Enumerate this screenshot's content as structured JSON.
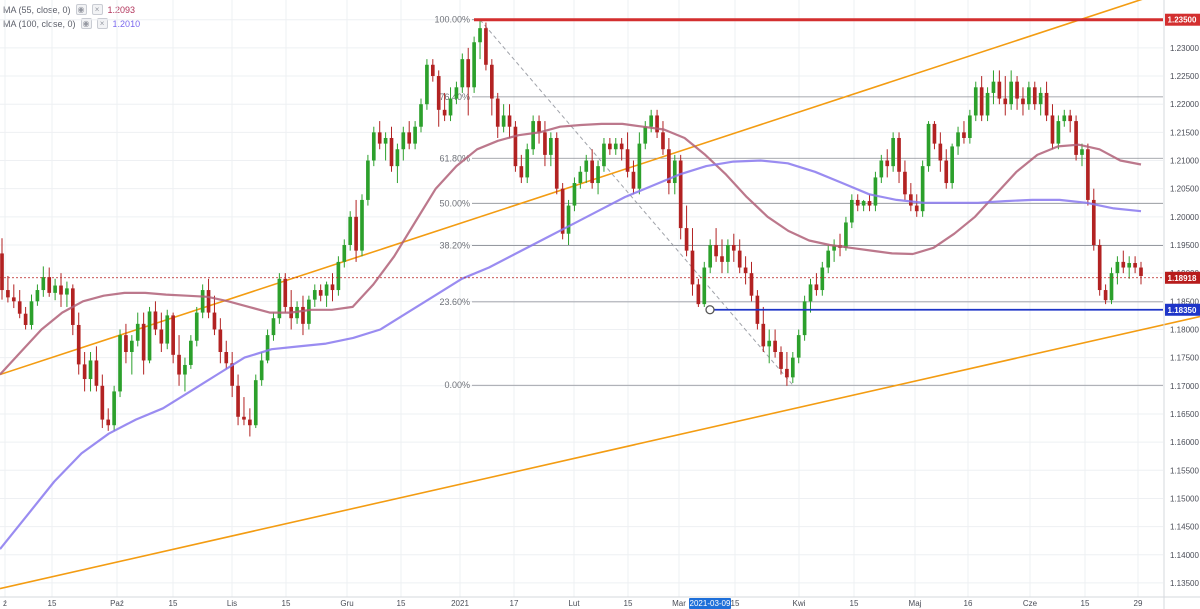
{
  "indicators": [
    {
      "label": "MA (55, close, 0)",
      "value": "1.2093",
      "color": "#b2345b"
    },
    {
      "label": "MA (100, close, 0)",
      "value": "1.2010",
      "color": "#7b68ee"
    }
  ],
  "chart_data": {
    "type": "candlestick",
    "x_tick_labels": [
      "ź",
      "15",
      "Paź",
      "15",
      "Lis",
      "15",
      "Gru",
      "15",
      "2021",
      "17",
      "Lut",
      "15",
      "Mar",
      "15",
      "Kwi",
      "15",
      "Maj",
      "16",
      "Cze",
      "15",
      "29"
    ],
    "x_highlight_label": "2021-03-09",
    "y_tick_labels": [
      "1.23500",
      "1.23000",
      "1.22500",
      "1.22000",
      "1.21500",
      "1.21000",
      "1.20500",
      "1.20000",
      "1.19500",
      "1.19000",
      "1.18500",
      "1.18000",
      "1.17500",
      "1.17000",
      "1.16500",
      "1.16000",
      "1.15500",
      "1.15000",
      "1.14500",
      "1.14000",
      "1.13500"
    ],
    "ylim": [
      1.1325,
      1.2385
    ],
    "price_labels": [
      {
        "text": "1.23500",
        "value": 1.235,
        "color": "#d32f2f"
      },
      {
        "text": "1.18918",
        "value": 1.18918,
        "color": "#b71c1c"
      },
      {
        "text": "1.18350",
        "value": 1.1835,
        "color": "#1e35c8"
      }
    ],
    "fibonacci": [
      {
        "label": "100.00%",
        "value": 1.235
      },
      {
        "label": "76.40%",
        "value": 1.2213
      },
      {
        "label": "61.80%",
        "value": 1.2104
      },
      {
        "label": "50.00%",
        "value": 1.2024
      },
      {
        "label": "38.20%",
        "value": 1.1949
      },
      {
        "label": "23.60%",
        "value": 1.1849
      },
      {
        "label": "0.00%",
        "value": 1.1701
      }
    ],
    "candles": [
      [
        1.1935,
        1.1962,
        1.1853,
        1.187
      ],
      [
        1.187,
        1.1895,
        1.1848,
        1.1857
      ],
      [
        1.1857,
        1.188,
        1.1838,
        1.185
      ],
      [
        1.185,
        1.187,
        1.182,
        1.1828
      ],
      [
        1.1828,
        1.184,
        1.18,
        1.1808
      ],
      [
        1.1808,
        1.1862,
        1.18,
        1.185
      ],
      [
        1.185,
        1.188,
        1.1842,
        1.187
      ],
      [
        1.187,
        1.1912,
        1.1858,
        1.1893
      ],
      [
        1.1893,
        1.191,
        1.1858,
        1.1865
      ],
      [
        1.1865,
        1.189,
        1.1852,
        1.1878
      ],
      [
        1.1878,
        1.19,
        1.184,
        1.1862
      ],
      [
        1.1862,
        1.1885,
        1.184,
        1.1873
      ],
      [
        1.1873,
        1.188,
        1.179,
        1.1808
      ],
      [
        1.1808,
        1.183,
        1.172,
        1.1738
      ],
      [
        1.1738,
        1.176,
        1.169,
        1.1712
      ],
      [
        1.1712,
        1.176,
        1.169,
        1.1745
      ],
      [
        1.1745,
        1.177,
        1.169,
        1.17
      ],
      [
        1.17,
        1.172,
        1.1625,
        1.164
      ],
      [
        1.164,
        1.166,
        1.162,
        1.163
      ],
      [
        1.163,
        1.17,
        1.162,
        1.169
      ],
      [
        1.169,
        1.18,
        1.168,
        1.179
      ],
      [
        1.179,
        1.181,
        1.174,
        1.176
      ],
      [
        1.176,
        1.179,
        1.172,
        1.178
      ],
      [
        1.178,
        1.183,
        1.177,
        1.181
      ],
      [
        1.181,
        1.183,
        1.172,
        1.1745
      ],
      [
        1.1745,
        1.184,
        1.174,
        1.1832
      ],
      [
        1.1832,
        1.185,
        1.179,
        1.18
      ],
      [
        1.18,
        1.183,
        1.176,
        1.1775
      ],
      [
        1.1775,
        1.1835,
        1.1765,
        1.1825
      ],
      [
        1.1825,
        1.183,
        1.174,
        1.1755
      ],
      [
        1.1755,
        1.179,
        1.17,
        1.172
      ],
      [
        1.172,
        1.175,
        1.169,
        1.1737
      ],
      [
        1.1737,
        1.179,
        1.173,
        1.178
      ],
      [
        1.178,
        1.184,
        1.177,
        1.183
      ],
      [
        1.183,
        1.188,
        1.182,
        1.187
      ],
      [
        1.187,
        1.189,
        1.182,
        1.183
      ],
      [
        1.183,
        1.186,
        1.179,
        1.18
      ],
      [
        1.18,
        1.182,
        1.174,
        1.176
      ],
      [
        1.176,
        1.178,
        1.173,
        1.174
      ],
      [
        1.174,
        1.176,
        1.168,
        1.17
      ],
      [
        1.17,
        1.172,
        1.163,
        1.1645
      ],
      [
        1.1645,
        1.168,
        1.163,
        1.164
      ],
      [
        1.164,
        1.166,
        1.161,
        1.163
      ],
      [
        1.163,
        1.172,
        1.1625,
        1.171
      ],
      [
        1.171,
        1.176,
        1.17,
        1.1745
      ],
      [
        1.1745,
        1.18,
        1.174,
        1.179
      ],
      [
        1.179,
        1.183,
        1.178,
        1.182
      ],
      [
        1.182,
        1.19,
        1.181,
        1.189
      ],
      [
        1.189,
        1.19,
        1.183,
        1.184
      ],
      [
        1.184,
        1.187,
        1.18,
        1.182
      ],
      [
        1.182,
        1.185,
        1.181,
        1.184
      ],
      [
        1.184,
        1.186,
        1.179,
        1.181
      ],
      [
        1.181,
        1.186,
        1.18,
        1.1853
      ],
      [
        1.1853,
        1.188,
        1.184,
        1.187
      ],
      [
        1.187,
        1.188,
        1.185,
        1.186
      ],
      [
        1.186,
        1.1885,
        1.184,
        1.188
      ],
      [
        1.188,
        1.19,
        1.185,
        1.187
      ],
      [
        1.187,
        1.193,
        1.186,
        1.192
      ],
      [
        1.192,
        1.196,
        1.191,
        1.195
      ],
      [
        1.195,
        1.201,
        1.194,
        1.2
      ],
      [
        1.2,
        1.203,
        1.192,
        1.194
      ],
      [
        1.194,
        1.204,
        1.193,
        1.203
      ],
      [
        1.203,
        1.211,
        1.202,
        1.21
      ],
      [
        1.21,
        1.216,
        1.209,
        1.215
      ],
      [
        1.215,
        1.217,
        1.212,
        1.213
      ],
      [
        1.213,
        1.215,
        1.21,
        1.214
      ],
      [
        1.214,
        1.216,
        1.208,
        1.209
      ],
      [
        1.209,
        1.213,
        1.206,
        1.212
      ],
      [
        1.212,
        1.216,
        1.21,
        1.215
      ],
      [
        1.215,
        1.217,
        1.212,
        1.213
      ],
      [
        1.213,
        1.217,
        1.212,
        1.216
      ],
      [
        1.216,
        1.221,
        1.215,
        1.22
      ],
      [
        1.22,
        1.228,
        1.219,
        1.227
      ],
      [
        1.227,
        1.228,
        1.224,
        1.225
      ],
      [
        1.225,
        1.226,
        1.216,
        1.219
      ],
      [
        1.219,
        1.222,
        1.217,
        1.218
      ],
      [
        1.218,
        1.223,
        1.217,
        1.221
      ],
      [
        1.221,
        1.224,
        1.22,
        1.223
      ],
      [
        1.223,
        1.229,
        1.222,
        1.228
      ],
      [
        1.228,
        1.23,
        1.218,
        1.223
      ],
      [
        1.223,
        1.232,
        1.222,
        1.231
      ],
      [
        1.231,
        1.2349,
        1.228,
        1.2335
      ],
      [
        1.2335,
        1.2345,
        1.226,
        1.227
      ],
      [
        1.227,
        1.228,
        1.218,
        1.221
      ],
      [
        1.221,
        1.222,
        1.214,
        1.216
      ],
      [
        1.216,
        1.22,
        1.215,
        1.218
      ],
      [
        1.218,
        1.22,
        1.214,
        1.216
      ],
      [
        1.216,
        1.217,
        1.208,
        1.209
      ],
      [
        1.209,
        1.211,
        1.206,
        1.207
      ],
      [
        1.207,
        1.213,
        1.206,
        1.212
      ],
      [
        1.212,
        1.218,
        1.211,
        1.217
      ],
      [
        1.217,
        1.218,
        1.213,
        1.215
      ],
      [
        1.215,
        1.217,
        1.209,
        1.211
      ],
      [
        1.211,
        1.215,
        1.209,
        1.214
      ],
      [
        1.214,
        1.215,
        1.204,
        1.205
      ],
      [
        1.205,
        1.206,
        1.196,
        1.197
      ],
      [
        1.197,
        1.203,
        1.195,
        1.202
      ],
      [
        1.202,
        1.207,
        1.201,
        1.206
      ],
      [
        1.206,
        1.209,
        1.205,
        1.208
      ],
      [
        1.208,
        1.211,
        1.206,
        1.21
      ],
      [
        1.21,
        1.212,
        1.205,
        1.206
      ],
      [
        1.206,
        1.21,
        1.204,
        1.209
      ],
      [
        1.209,
        1.214,
        1.208,
        1.213
      ],
      [
        1.213,
        1.214,
        1.211,
        1.212
      ],
      [
        1.212,
        1.214,
        1.211,
        1.213
      ],
      [
        1.213,
        1.214,
        1.21,
        1.212
      ],
      [
        1.212,
        1.215,
        1.207,
        1.208
      ],
      [
        1.208,
        1.21,
        1.204,
        1.205
      ],
      [
        1.205,
        1.215,
        1.204,
        1.213
      ],
      [
        1.213,
        1.217,
        1.212,
        1.216
      ],
      [
        1.216,
        1.219,
        1.215,
        1.218
      ],
      [
        1.218,
        1.219,
        1.214,
        1.215
      ],
      [
        1.215,
        1.217,
        1.211,
        1.212
      ],
      [
        1.212,
        1.214,
        1.204,
        1.206
      ],
      [
        1.206,
        1.211,
        1.204,
        1.21
      ],
      [
        1.21,
        1.211,
        1.196,
        1.198
      ],
      [
        1.198,
        1.202,
        1.193,
        1.194
      ],
      [
        1.194,
        1.198,
        1.186,
        1.188
      ],
      [
        1.188,
        1.189,
        1.184,
        1.1845
      ],
      [
        1.1845,
        1.192,
        1.184,
        1.191
      ],
      [
        1.191,
        1.196,
        1.19,
        1.195
      ],
      [
        1.195,
        1.198,
        1.192,
        1.193
      ],
      [
        1.193,
        1.196,
        1.19,
        1.192
      ],
      [
        1.192,
        1.196,
        1.19,
        1.195
      ],
      [
        1.195,
        1.197,
        1.192,
        1.194
      ],
      [
        1.194,
        1.196,
        1.19,
        1.191
      ],
      [
        1.191,
        1.193,
        1.188,
        1.19
      ],
      [
        1.19,
        1.192,
        1.185,
        1.186
      ],
      [
        1.186,
        1.187,
        1.18,
        1.181
      ],
      [
        1.181,
        1.184,
        1.176,
        1.177
      ],
      [
        1.177,
        1.18,
        1.174,
        1.178
      ],
      [
        1.178,
        1.18,
        1.175,
        1.176
      ],
      [
        1.176,
        1.177,
        1.172,
        1.173
      ],
      [
        1.173,
        1.176,
        1.17,
        1.1715
      ],
      [
        1.1715,
        1.176,
        1.1705,
        1.175
      ],
      [
        1.175,
        1.18,
        1.174,
        1.179
      ],
      [
        1.179,
        1.186,
        1.178,
        1.185
      ],
      [
        1.185,
        1.189,
        1.183,
        1.188
      ],
      [
        1.188,
        1.19,
        1.186,
        1.187
      ],
      [
        1.187,
        1.192,
        1.186,
        1.191
      ],
      [
        1.191,
        1.195,
        1.19,
        1.194
      ],
      [
        1.194,
        1.196,
        1.192,
        1.195
      ],
      [
        1.195,
        1.197,
        1.193,
        1.1945
      ],
      [
        1.1945,
        1.2,
        1.194,
        1.199
      ],
      [
        1.199,
        1.204,
        1.198,
        1.203
      ],
      [
        1.203,
        1.204,
        1.201,
        1.202
      ],
      [
        1.202,
        1.203,
        1.201,
        1.2028
      ],
      [
        1.2028,
        1.204,
        1.201,
        1.202
      ],
      [
        1.202,
        1.208,
        1.201,
        1.207
      ],
      [
        1.207,
        1.211,
        1.206,
        1.21
      ],
      [
        1.21,
        1.212,
        1.207,
        1.209
      ],
      [
        1.209,
        1.215,
        1.208,
        1.214
      ],
      [
        1.214,
        1.215,
        1.206,
        1.208
      ],
      [
        1.208,
        1.21,
        1.203,
        1.204
      ],
      [
        1.204,
        1.206,
        1.201,
        1.202
      ],
      [
        1.202,
        1.204,
        1.2,
        1.201
      ],
      [
        1.201,
        1.21,
        1.2,
        1.209
      ],
      [
        1.209,
        1.217,
        1.208,
        1.2165
      ],
      [
        1.2165,
        1.217,
        1.212,
        1.213
      ],
      [
        1.213,
        1.215,
        1.208,
        1.21
      ],
      [
        1.21,
        1.212,
        1.205,
        1.206
      ],
      [
        1.206,
        1.213,
        1.205,
        1.2125
      ],
      [
        1.2125,
        1.216,
        1.211,
        1.215
      ],
      [
        1.215,
        1.217,
        1.213,
        1.214
      ],
      [
        1.214,
        1.219,
        1.213,
        1.218
      ],
      [
        1.218,
        1.224,
        1.217,
        1.223
      ],
      [
        1.223,
        1.225,
        1.217,
        1.218
      ],
      [
        1.218,
        1.223,
        1.217,
        1.222
      ],
      [
        1.222,
        1.226,
        1.22,
        1.224
      ],
      [
        1.224,
        1.226,
        1.22,
        1.221
      ],
      [
        1.221,
        1.225,
        1.218,
        1.22
      ],
      [
        1.22,
        1.226,
        1.219,
        1.224
      ],
      [
        1.224,
        1.225,
        1.219,
        1.221
      ],
      [
        1.221,
        1.223,
        1.218,
        1.22
      ],
      [
        1.22,
        1.224,
        1.219,
        1.223
      ],
      [
        1.223,
        1.224,
        1.219,
        1.22
      ],
      [
        1.22,
        1.223,
        1.218,
        1.222
      ],
      [
        1.222,
        1.224,
        1.217,
        1.218
      ],
      [
        1.218,
        1.22,
        1.212,
        1.213
      ],
      [
        1.213,
        1.218,
        1.212,
        1.217
      ],
      [
        1.217,
        1.219,
        1.216,
        1.218
      ],
      [
        1.218,
        1.219,
        1.215,
        1.217
      ],
      [
        1.217,
        1.218,
        1.21,
        1.211
      ],
      [
        1.211,
        1.213,
        1.209,
        1.212
      ],
      [
        1.212,
        1.213,
        1.202,
        1.203
      ],
      [
        1.203,
        1.205,
        1.194,
        1.195
      ],
      [
        1.195,
        1.196,
        1.186,
        1.187
      ],
      [
        1.187,
        1.188,
        1.1845,
        1.1852
      ],
      [
        1.1852,
        1.191,
        1.1845,
        1.19
      ],
      [
        1.19,
        1.193,
        1.188,
        1.192
      ],
      [
        1.192,
        1.194,
        1.19,
        1.191
      ],
      [
        1.191,
        1.193,
        1.189,
        1.1918
      ],
      [
        1.1918,
        1.193,
        1.19,
        1.191
      ],
      [
        1.191,
        1.192,
        1.188,
        1.1895
      ]
    ],
    "ma55": [
      1.172,
      1.176,
      1.18,
      1.183,
      1.185,
      1.186,
      1.1865,
      1.1865,
      1.1862,
      1.186,
      1.1858,
      1.185,
      1.184,
      1.183,
      1.183,
      1.1835,
      1.1835,
      1.184,
      1.188,
      1.193,
      1.199,
      1.205,
      1.209,
      1.212,
      1.2135,
      1.2145,
      1.215,
      1.216,
      1.2163,
      1.2165,
      1.2165,
      1.216,
      1.2155,
      1.214,
      1.211,
      1.2075,
      1.2035,
      1.2,
      1.1975,
      1.1958,
      1.195,
      1.1945,
      1.194,
      1.1935,
      1.1934,
      1.1945,
      1.197,
      1.2,
      1.204,
      1.208,
      1.211,
      1.2125,
      1.2128,
      1.212,
      1.21,
      1.2093
    ],
    "ma100": [
      1.141,
      1.147,
      1.153,
      1.158,
      1.1615,
      1.164,
      1.166,
      1.169,
      1.172,
      1.175,
      1.1765,
      1.177,
      1.1775,
      1.1785,
      1.18,
      1.183,
      1.186,
      1.189,
      1.191,
      1.1935,
      1.196,
      1.1985,
      1.201,
      1.2035,
      1.2055,
      1.2075,
      1.209,
      1.2098,
      1.21,
      1.2095,
      1.208,
      1.206,
      1.204,
      1.203,
      1.2025,
      1.2025,
      1.2025,
      1.2028,
      1.203,
      1.203,
      1.2025,
      1.2015,
      1.201
    ],
    "channel_upper": [
      [
        1.172,
        1.242
      ]
    ],
    "channel_lower": [
      [
        1.134,
        1.1823
      ]
    ]
  }
}
